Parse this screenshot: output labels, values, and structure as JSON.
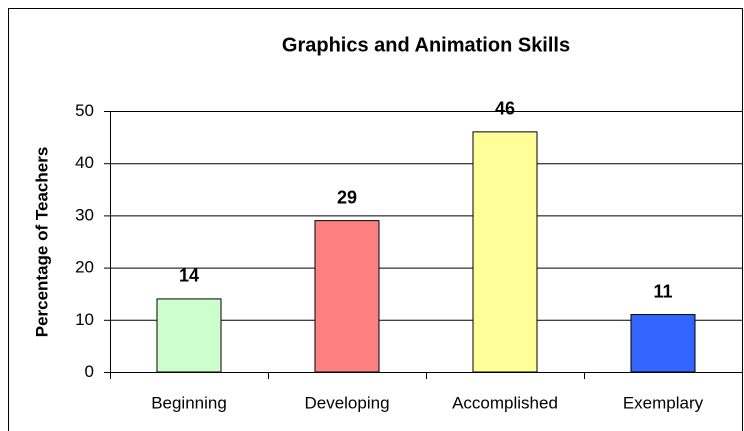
{
  "chart_data": {
    "type": "bar",
    "title": "Graphics and Animation Skills",
    "y_label": "Percentage of Teachers",
    "categories": [
      "Beginning",
      "Developing",
      "Accomplished",
      "Exemplary"
    ],
    "values": [
      14,
      29,
      46,
      11
    ],
    "colors": [
      "#ccffcc",
      "#ff8080",
      "#ffff99",
      "#3366ff"
    ],
    "ylim": [
      0,
      50
    ],
    "yticks": [
      0,
      10,
      20,
      30,
      40,
      50
    ],
    "grid": true
  }
}
